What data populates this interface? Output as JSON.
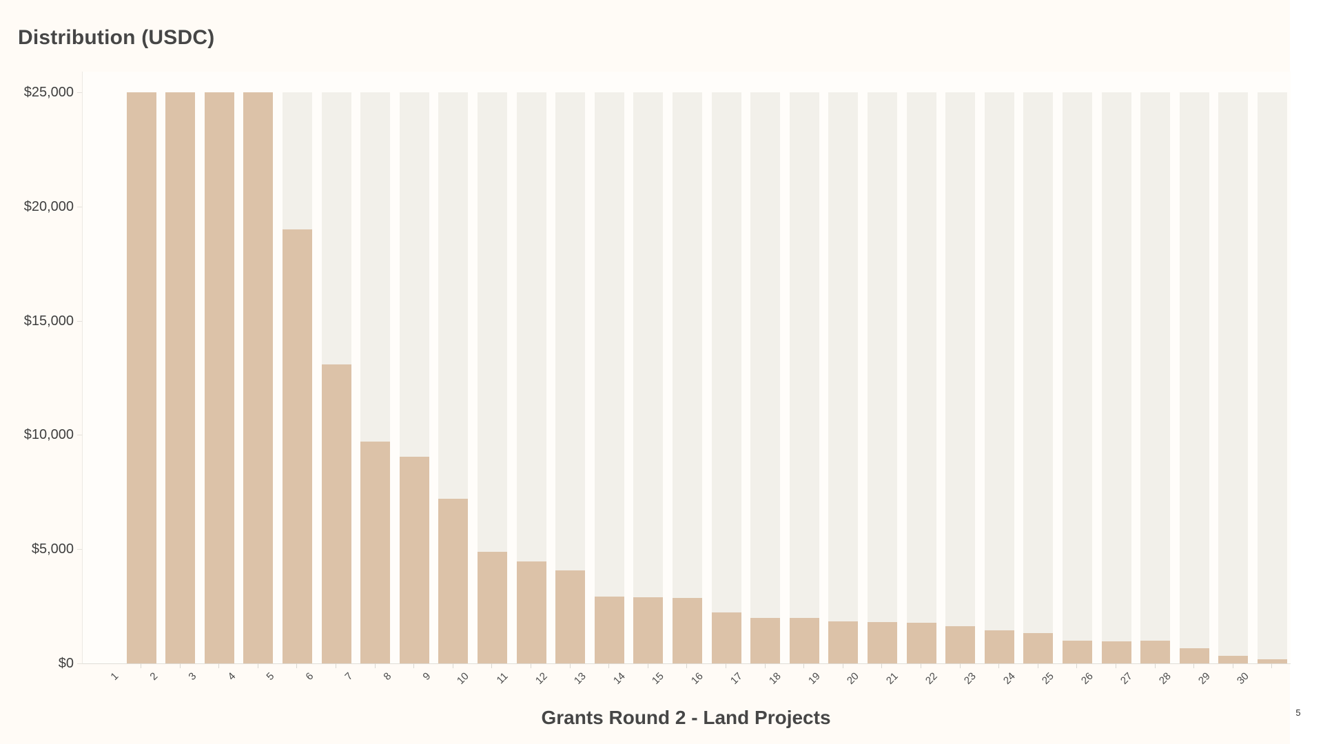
{
  "page": {
    "page_number": "5"
  },
  "chart_data": {
    "type": "bar",
    "title": "Distribution (USDC)",
    "xlabel": "Grants Round 2 - Land Projects",
    "ylabel": "",
    "categories": [
      "1",
      "2",
      "3",
      "4",
      "5",
      "6",
      "7",
      "8",
      "9",
      "10",
      "11",
      "12",
      "13",
      "14",
      "15",
      "16",
      "17",
      "18",
      "19",
      "20",
      "21",
      "22",
      "23",
      "24",
      "25",
      "26",
      "27",
      "28",
      "29",
      "30"
    ],
    "values": [
      25000,
      25000,
      25000,
      25000,
      19000,
      13080,
      9720,
      9060,
      7210,
      4890,
      4460,
      4080,
      2940,
      2900,
      2850,
      2220,
      2000,
      1990,
      1840,
      1800,
      1770,
      1620,
      1450,
      1340,
      1010,
      980,
      990,
      670,
      320,
      170
    ],
    "ylim": [
      0,
      25000
    ],
    "yticks": [
      0,
      5000,
      10000,
      15000,
      20000,
      25000
    ],
    "ytick_labels": [
      "$0",
      "$5,000",
      "$10,000",
      "$15,000",
      "$20,000",
      "$25,000"
    ],
    "track_max": 25000,
    "grid": false,
    "legend": "none",
    "colors": {
      "bar": "#dcc2a8",
      "track": "#f2f0ea",
      "canvas_background": "#fffbf6",
      "plot_background": "#fffdfa",
      "title_text": "#464646",
      "tick_text": "#4a4a4a"
    }
  }
}
